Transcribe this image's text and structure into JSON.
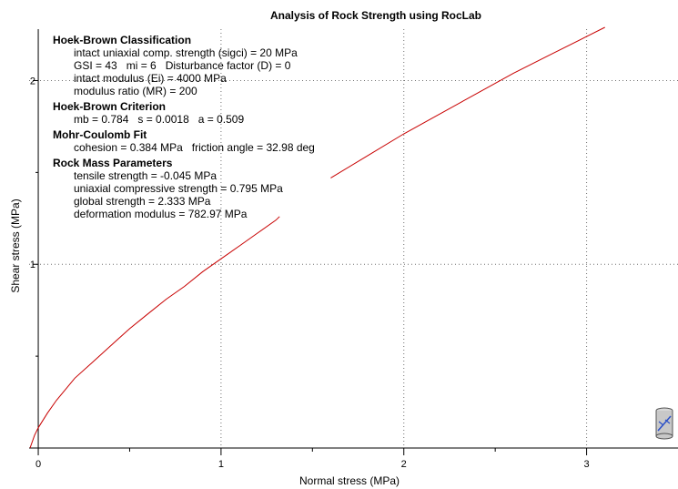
{
  "chart_data": {
    "type": "line",
    "title": "Analysis of Rock Strength using RocLab",
    "xlabel": "Normal stress (MPa)",
    "ylabel": "Shear stress (MPa)",
    "xlim": [
      -0.05,
      3.5
    ],
    "ylim": [
      0,
      2.28
    ],
    "x_ticks": [
      0,
      1,
      2,
      3
    ],
    "y_ticks": [
      1,
      2
    ],
    "x_minor_step": 0.5,
    "y_minor_step": 0.5,
    "grid": "dotted at major ticks",
    "series": [
      {
        "color": "#c80000",
        "segments": [
          {
            "x": [
              -0.045,
              -0.02,
              0.0,
              0.05,
              0.1,
              0.2,
              0.3,
              0.4,
              0.5,
              0.6,
              0.7,
              0.8,
              0.9,
              1.0,
              1.1,
              1.2,
              1.3,
              1.32
            ],
            "y": [
              0.0,
              0.07,
              0.11,
              0.19,
              0.26,
              0.38,
              0.47,
              0.56,
              0.65,
              0.73,
              0.81,
              0.88,
              0.96,
              1.03,
              1.1,
              1.17,
              1.24,
              1.26
            ]
          },
          {
            "x": [
              1.6,
              1.8,
              2.0,
              2.2,
              2.4,
              2.6,
              2.8,
              3.0,
              3.1
            ],
            "y": [
              1.47,
              1.59,
              1.71,
              1.82,
              1.93,
              2.04,
              2.14,
              2.24,
              2.29
            ]
          }
        ]
      }
    ]
  },
  "info": {
    "sections": [
      {
        "title": "Hoek-Brown Classification",
        "lines": [
          [
            "intact uniaxial comp. strength (sigci) = 20 MPa"
          ],
          [
            "GSI = 43",
            "mi = 6",
            "Disturbance factor (D) = 0"
          ],
          [
            "intact modulus (Ei) = 4000 MPa"
          ],
          [
            "modulus ratio (MR) = 200"
          ]
        ]
      },
      {
        "title": "Hoek-Brown Criterion",
        "lines": [
          [
            "mb = 0.784",
            "s = 0.0018",
            "a = 0.509"
          ]
        ]
      },
      {
        "title": "Mohr-Coulomb Fit",
        "lines": [
          [
            "cohesion = 0.384 MPa",
            "friction angle = 32.98 deg"
          ]
        ]
      },
      {
        "title": "Rock Mass Parameters",
        "lines": [
          [
            "tensile strength = -0.045 MPa"
          ],
          [
            "uniaxial compressive strength = 0.795 MPa"
          ],
          [
            "global strength = 2.333 MPa"
          ],
          [
            "deformation modulus = 782.97 MPa"
          ]
        ]
      }
    ]
  },
  "icon": {
    "name": "roclab-cylinder-icon"
  }
}
